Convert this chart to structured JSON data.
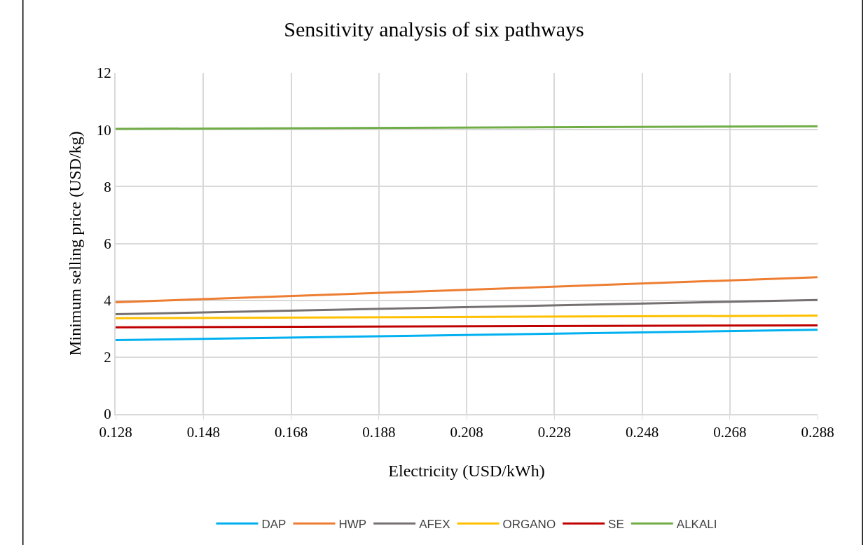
{
  "chart_data": {
    "type": "line",
    "title": "Sensitivity analysis of six pathways",
    "xlabel": "Electricity (USD/kWh)",
    "ylabel": "Minimum selling price (USD/kg)",
    "x": [
      0.128,
      0.288
    ],
    "series": [
      {
        "name": "DAP",
        "color": "#00b0f0",
        "values": [
          2.6,
          2.96
        ]
      },
      {
        "name": "HWP",
        "color": "#ed7d31",
        "values": [
          3.93,
          4.81
        ]
      },
      {
        "name": "AFEX",
        "color": "#767171",
        "values": [
          3.51,
          4.01
        ]
      },
      {
        "name": "ORGANO",
        "color": "#ffc000",
        "values": [
          3.37,
          3.46
        ]
      },
      {
        "name": "SE",
        "color": "#c00000",
        "values": [
          3.05,
          3.12
        ]
      },
      {
        "name": "ALKALI",
        "color": "#70ad47",
        "values": [
          10.03,
          10.12
        ]
      }
    ],
    "xlim": [
      0.128,
      0.288
    ],
    "xticks": [
      0.128,
      0.148,
      0.168,
      0.188,
      0.208,
      0.228,
      0.248,
      0.268,
      0.288
    ],
    "ylim": [
      0,
      12
    ],
    "yticks": [
      0,
      2,
      4,
      6,
      8,
      10,
      12
    ],
    "grid": true,
    "legend": "bottom",
    "marker": "none",
    "line_style": "solid"
  }
}
